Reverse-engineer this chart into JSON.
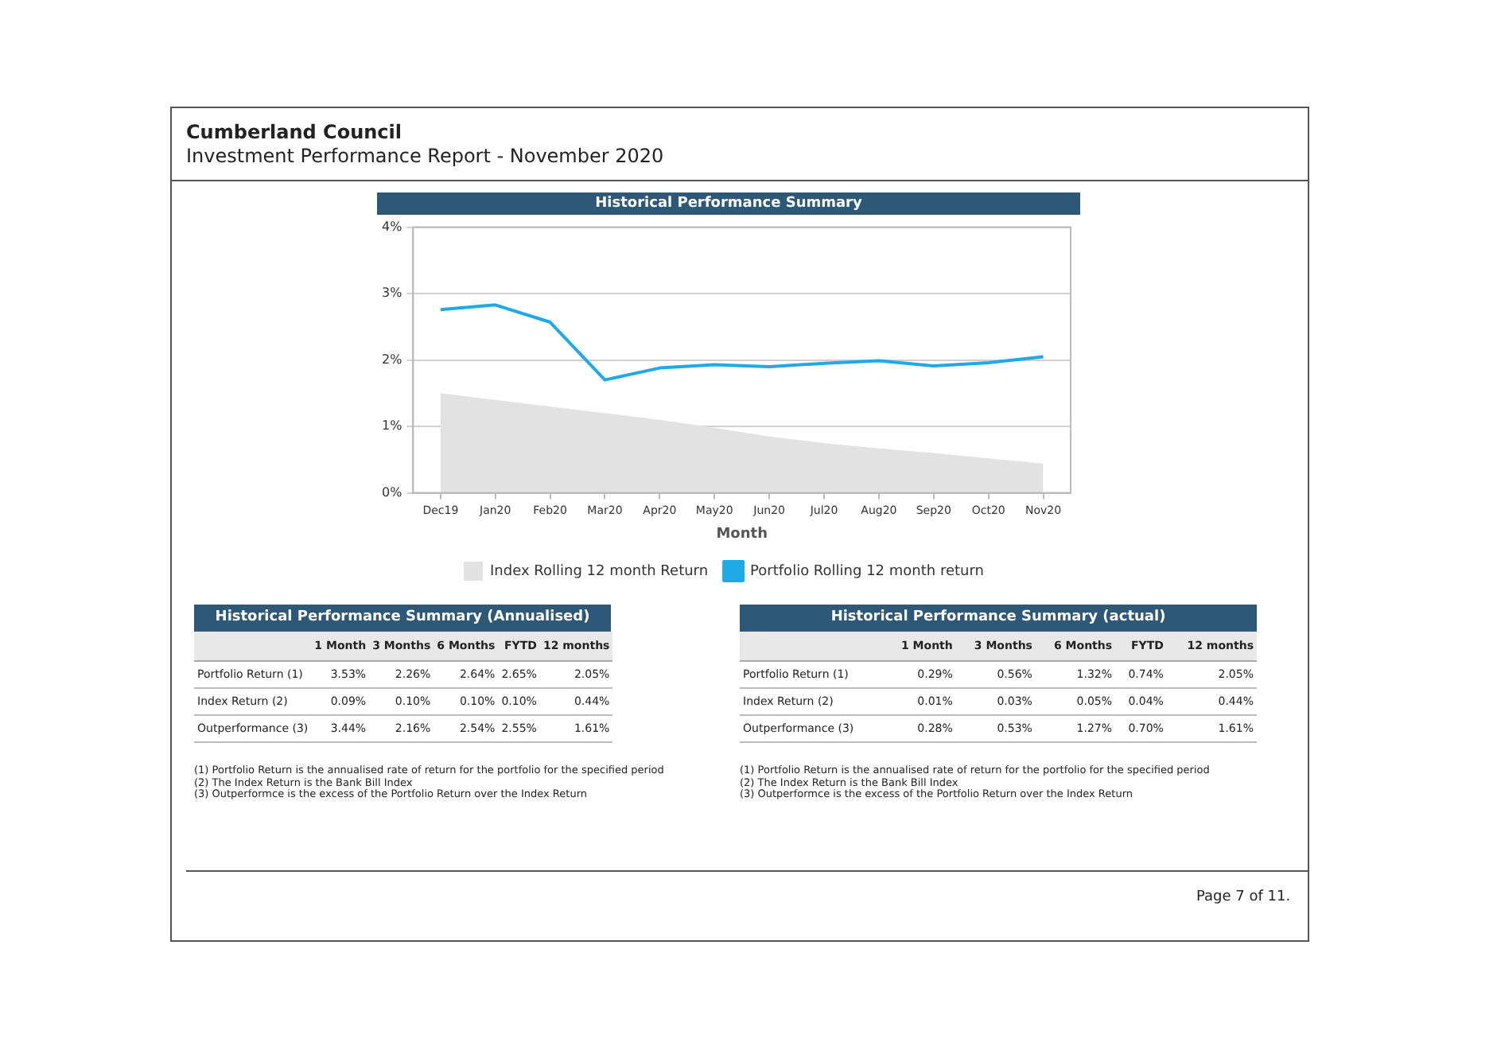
{
  "chart_data": [
    {
      "type": "line",
      "title": "Historical Performance Summary",
      "xlabel": "Month",
      "categories": [
        "Dec19",
        "Jan20",
        "Feb20",
        "Mar20",
        "Apr20",
        "May20",
        "Jun20",
        "Jul20",
        "Aug20",
        "Sep20",
        "Oct20",
        "Nov20"
      ],
      "series": [
        {
          "name": "Index Rolling 12 month Return",
          "type": "area",
          "color": "#e2e2e2",
          "values": [
            1.5,
            1.4,
            1.3,
            1.2,
            1.1,
            0.98,
            0.85,
            0.75,
            0.67,
            0.6,
            0.52,
            0.44
          ]
        },
        {
          "name": "Portfolio Rolling 12 month return",
          "type": "line",
          "color": "#1ea9e8",
          "values": [
            2.76,
            2.83,
            2.57,
            1.7,
            1.88,
            1.93,
            1.9,
            1.95,
            1.99,
            1.91,
            1.96,
            2.05
          ]
        }
      ],
      "ylim": [
        0,
        4
      ],
      "yticks": [
        {
          "value": 0,
          "label": "0%"
        },
        {
          "value": 1,
          "label": "1%"
        },
        {
          "value": 2,
          "label": "2%"
        },
        {
          "value": 3,
          "label": "3%"
        },
        {
          "value": 4,
          "label": "4%"
        }
      ],
      "grid": "y",
      "legend": "bottom",
      "annotations": [
        "Cumberland Council",
        "Investment Performance Report - November 2020",
        "Page 7 of 11."
      ]
    },
    {
      "type": "other",
      "title": "Historical Performance Summary (Annualised)",
      "categories": [
        null,
        "1 Month",
        "3 Months",
        "6 Months",
        "FYTD",
        "12 months"
      ],
      "y_categories": [
        "Portfolio Return (1)",
        "Index Return (2)",
        "Outperformance (3)"
      ],
      "cell_labels": [
        [
          "3.53%",
          "2.26%",
          "2.64%",
          "2.65%",
          "2.05%"
        ],
        [
          "0.09%",
          "0.10%",
          "0.10%",
          "0.10%",
          "0.44%"
        ],
        [
          "3.44%",
          "2.16%",
          "2.54%",
          "2.55%",
          "1.61%"
        ]
      ],
      "annotations": [
        "(1) Portfolio Return is the annualised rate of return for the portfolio for the specified period",
        "(2) The Index Return is the Bank Bill Index",
        "(3) Outperformce is the excess of the Portfolio Return over the Index Return"
      ]
    },
    {
      "type": "other",
      "title": "Historical Performance Summary (actual)",
      "categories": [
        null,
        "1 Month",
        "3 Months",
        "6 Months",
        "FYTD",
        "12 months"
      ],
      "y_categories": [
        "Portfolio Return (1)",
        "Index Return (2)",
        "Outperformance (3)"
      ],
      "cell_labels": [
        [
          "0.29%",
          "0.56%",
          "1.32%",
          "0.74%",
          "2.05%"
        ],
        [
          "0.01%",
          "0.03%",
          "0.05%",
          "0.04%",
          "0.44%"
        ],
        [
          "0.28%",
          "0.53%",
          "1.27%",
          "0.70%",
          "1.61%"
        ]
      ],
      "annotations": [
        "(1) Portfolio Return is the annualised rate of return for the portfolio for the specified period",
        "(2) The Index Return is the Bank Bill Index",
        "(3) Outperformce is the excess of the Portfolio Return over the Index Return"
      ]
    }
  ]
}
